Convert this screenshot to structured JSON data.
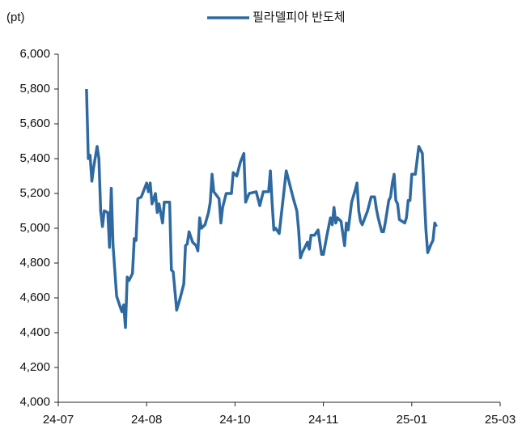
{
  "chart_data": {
    "type": "line",
    "y_label": "(pt)",
    "x": [
      16,
      17,
      18,
      19,
      20,
      22,
      23,
      24,
      25,
      26,
      28,
      29,
      30,
      31,
      33,
      35,
      36,
      37,
      38,
      39,
      40,
      42,
      43,
      44,
      45,
      47,
      50,
      51,
      52,
      53,
      55,
      56,
      57,
      59,
      60,
      63,
      64,
      65,
      67,
      69,
      71,
      72,
      73,
      74,
      76,
      78,
      79,
      80,
      81,
      83,
      85,
      86,
      87,
      88,
      91,
      92,
      93,
      95,
      98,
      99,
      101,
      103,
      105,
      106,
      108,
      112,
      114,
      116,
      119,
      120,
      121,
      122,
      123,
      125,
      129,
      133,
      135,
      136,
      137,
      138,
      141,
      142,
      143,
      145,
      147,
      149,
      150,
      152,
      154,
      155,
      156,
      157,
      158,
      160,
      162,
      163,
      164,
      166,
      168,
      169,
      170,
      171,
      172,
      175,
      177,
      179,
      180,
      181,
      183,
      184,
      185,
      187,
      188,
      189,
      190,
      191,
      192,
      193,
      196,
      197,
      198,
      199,
      200,
      202,
      204,
      206,
      207,
      208,
      209,
      211,
      212,
      213,
      214
    ],
    "series": [
      {
        "name": "필라델피아 반도체",
        "color": "#2e6aa1",
        "values": [
          5800,
          5400,
          5420,
          5270,
          5350,
          5470,
          5400,
          5100,
          5010,
          5100,
          5090,
          4890,
          5230,
          4900,
          4610,
          4550,
          4520,
          4560,
          4430,
          4720,
          4700,
          4740,
          4940,
          4930,
          5170,
          5180,
          5260,
          5210,
          5260,
          5140,
          5200,
          5090,
          5140,
          5030,
          5150,
          5150,
          4760,
          4750,
          4530,
          4600,
          4680,
          4900,
          4910,
          4980,
          4920,
          4900,
          4870,
          5060,
          5000,
          5020,
          5090,
          5150,
          5310,
          5210,
          5170,
          5030,
          5120,
          5200,
          5200,
          5320,
          5300,
          5380,
          5430,
          5150,
          5200,
          5210,
          5130,
          5210,
          5210,
          5330,
          5140,
          4990,
          5000,
          4970,
          5330,
          5170,
          5100,
          4990,
          4830,
          4860,
          4920,
          4880,
          4960,
          4960,
          4990,
          4850,
          4850,
          4960,
          5060,
          5020,
          5120,
          5030,
          5060,
          5040,
          4900,
          5030,
          4990,
          5150,
          5220,
          5260,
          5100,
          5040,
          5020,
          5100,
          5180,
          5180,
          5110,
          5060,
          4980,
          4980,
          5030,
          5160,
          5180,
          5260,
          5310,
          5160,
          5140,
          5050,
          5030,
          5060,
          5160,
          5160,
          5310,
          5310,
          5470,
          5430,
          5200,
          4990,
          4860,
          4910,
          4930,
          5030,
          5010
        ]
      }
    ],
    "xlim": [
      0,
      250
    ],
    "xticks": [
      {
        "value": 0,
        "label": "24-07"
      },
      {
        "value": 50,
        "label": "24-08"
      },
      {
        "value": 100,
        "label": "24-10"
      },
      {
        "value": 150,
        "label": "24-11"
      },
      {
        "value": 200,
        "label": "25-01"
      },
      {
        "value": 250,
        "label": "25-03"
      }
    ],
    "ylim": [
      4000,
      6000
    ],
    "yticks": [
      {
        "value": 4000,
        "label": "4,000"
      },
      {
        "value": 4200,
        "label": "4,200"
      },
      {
        "value": 4400,
        "label": "4,400"
      },
      {
        "value": 4600,
        "label": "4,600"
      },
      {
        "value": 4800,
        "label": "4,800"
      },
      {
        "value": 5000,
        "label": "5,000"
      },
      {
        "value": 5200,
        "label": "5,200"
      },
      {
        "value": 5400,
        "label": "5,400"
      },
      {
        "value": 5600,
        "label": "5,600"
      },
      {
        "value": 5800,
        "label": "5,800"
      },
      {
        "value": 6000,
        "label": "6,000"
      }
    ],
    "grid": false,
    "legend": "top"
  }
}
